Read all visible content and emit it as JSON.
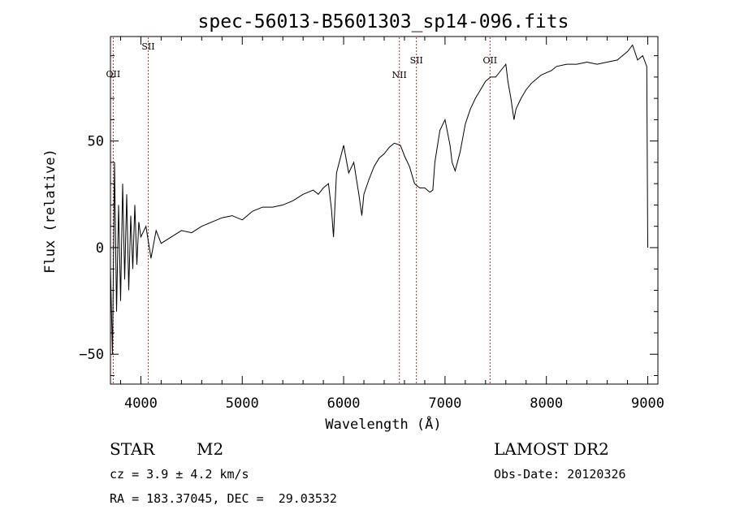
{
  "chart_data": {
    "type": "line",
    "title": "spec-56013-B5601303_sp14-096.fits",
    "xlabel": "Wavelength (Å)",
    "ylabel": "Flux (relative)",
    "xlim": [
      3700,
      9100
    ],
    "ylim": [
      -64,
      99
    ],
    "x_ticks": [
      4000,
      5000,
      6000,
      7000,
      8000,
      9000
    ],
    "y_ticks": [
      -50,
      0,
      50
    ],
    "grid": false,
    "legend": "none",
    "line_color": "#000000",
    "series": [
      {
        "x": [
          3700,
          3720,
          3740,
          3760,
          3780,
          3800,
          3820,
          3840,
          3860,
          3880,
          3900,
          3920,
          3940,
          3960,
          3980,
          4000,
          4050,
          4100,
          4150,
          4200,
          4300,
          4400,
          4500,
          4600,
          4700,
          4800,
          4900,
          5000,
          5100,
          5200,
          5300,
          5400,
          5500,
          5600,
          5650,
          5700,
          5750,
          5800,
          5850,
          5880,
          5900,
          5930,
          6000,
          6050,
          6100,
          6150,
          6180,
          6200,
          6250,
          6300,
          6350,
          6400,
          6450,
          6500,
          6560,
          6600,
          6650,
          6700,
          6750,
          6800,
          6850,
          6880,
          6900,
          6950,
          7000,
          7050,
          7070,
          7100,
          7150,
          7200,
          7250,
          7300,
          7350,
          7400,
          7450,
          7500,
          7550,
          7600,
          7620,
          7650,
          7680,
          7700,
          7750,
          7800,
          7850,
          7900,
          7950,
          8000,
          8050,
          8100,
          8200,
          8300,
          8400,
          8500,
          8600,
          8700,
          8750,
          8800,
          8850,
          8900,
          8950,
          8990,
          9000
        ],
        "y": [
          -10,
          -50,
          40,
          -30,
          20,
          -25,
          30,
          -15,
          25,
          -20,
          15,
          -10,
          20,
          -8,
          12,
          5,
          10,
          -5,
          8,
          2,
          5,
          8,
          7,
          10,
          12,
          14,
          15,
          13,
          17,
          19,
          19,
          20,
          22,
          25,
          26,
          27,
          25,
          28,
          30,
          18,
          5,
          35,
          48,
          35,
          40,
          25,
          15,
          25,
          32,
          38,
          42,
          44,
          47,
          49,
          48,
          43,
          38,
          30,
          28,
          28,
          26,
          27,
          40,
          55,
          60,
          48,
          40,
          36,
          45,
          58,
          65,
          70,
          74,
          78,
          80,
          80,
          83,
          86,
          78,
          70,
          60,
          65,
          70,
          74,
          77,
          79,
          81,
          82,
          83,
          85,
          86,
          86,
          87,
          86,
          87,
          88,
          90,
          92,
          95,
          88,
          90,
          85,
          0
        ]
      }
    ],
    "annotations": [
      {
        "label": "OII",
        "x": 3727
      },
      {
        "label": "SII",
        "x": 4072
      },
      {
        "label": "NII",
        "x": 6550
      },
      {
        "label": "SII",
        "x": 6718
      },
      {
        "label": "OII",
        "x": 7444
      }
    ]
  },
  "footer": {
    "object_type": "STAR",
    "subclass": "M2",
    "survey": "LAMOST DR2",
    "redshift_line": "cz = 3.9 ± 4.2 km/s",
    "obs_date": "Obs-Date: 20120326",
    "coords": "RA = 183.37045, DEC =  29.03532"
  }
}
